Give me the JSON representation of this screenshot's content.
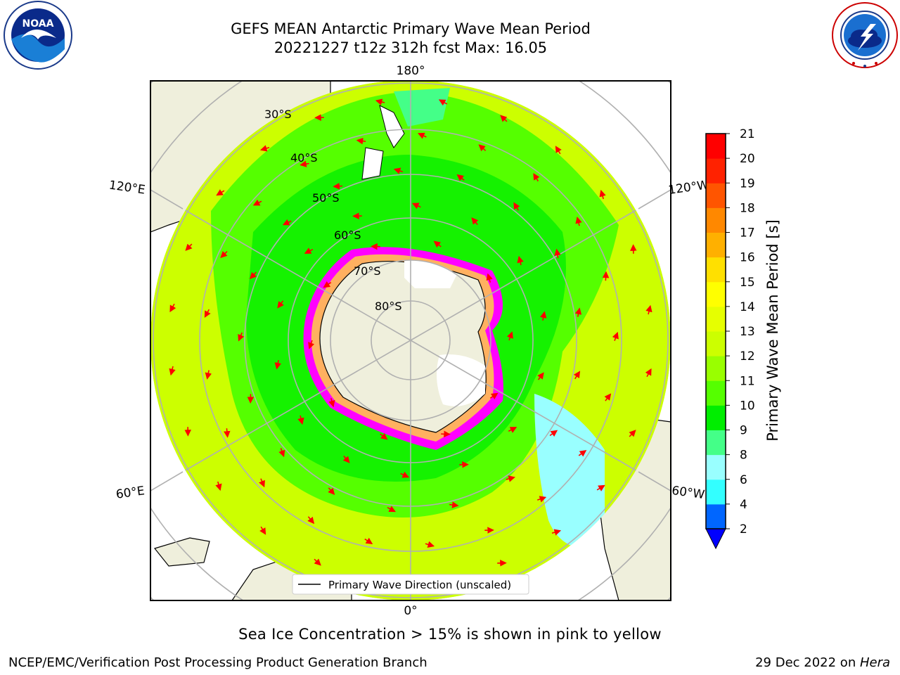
{
  "title": {
    "line1": "GEFS MEAN Antarctic Primary Wave Mean Period",
    "line2": "20221227 t12z 312h fcst   Max: 16.05"
  },
  "logos": {
    "left": {
      "name": "noaa-logo",
      "text": "NOAA",
      "ring": "NATIONAL OCEANIC AND ATMOSPHERIC ADMINISTRATION · U.S. DEPARTMENT OF COMMERCE"
    },
    "right": {
      "name": "nws-logo",
      "ring": "NATIONAL WEATHER SERVICE"
    }
  },
  "map": {
    "projection": "south-polar-stereographic",
    "lon_labels": [
      "180°",
      "120°E",
      "120°W",
      "60°E",
      "60°W",
      "0°"
    ],
    "lat_labels": [
      "30°S",
      "40°S",
      "50°S",
      "60°S",
      "70°S",
      "80°S"
    ],
    "legend": "Primary Wave Direction (unscaled)",
    "arrow_color": "#ff0000",
    "land_color": "#efefdc",
    "ice_colors": [
      "#ff00ff",
      "#ff66cc",
      "#ffb060",
      "#ffffff"
    ]
  },
  "colorbar": {
    "label": "Primary Wave Mean Period [s]",
    "ticks": [
      "2",
      "4",
      "6",
      "8",
      "9",
      "10",
      "11",
      "12",
      "13",
      "14",
      "15",
      "16",
      "17",
      "18",
      "19",
      "20",
      "21"
    ],
    "colors": [
      "#0066ff",
      "#00ccff",
      "#33ffff",
      "#99ffff",
      "#44ff88",
      "#00ee00",
      "#55ff00",
      "#99ff00",
      "#ccff00",
      "#e6ff00",
      "#ffff00",
      "#ffe000",
      "#ffb000",
      "#ff8800",
      "#ff5500",
      "#ff2200",
      "#ff0000"
    ],
    "extend_color": "#0000ff"
  },
  "footnote": "Sea Ice Concentration > 15% is shown in pink to yellow",
  "credit": {
    "left": "NCEP/EMC/Verification Post Processing Product Generation Branch",
    "right_date": "29 Dec 2022 on ",
    "right_host": "Hera"
  }
}
